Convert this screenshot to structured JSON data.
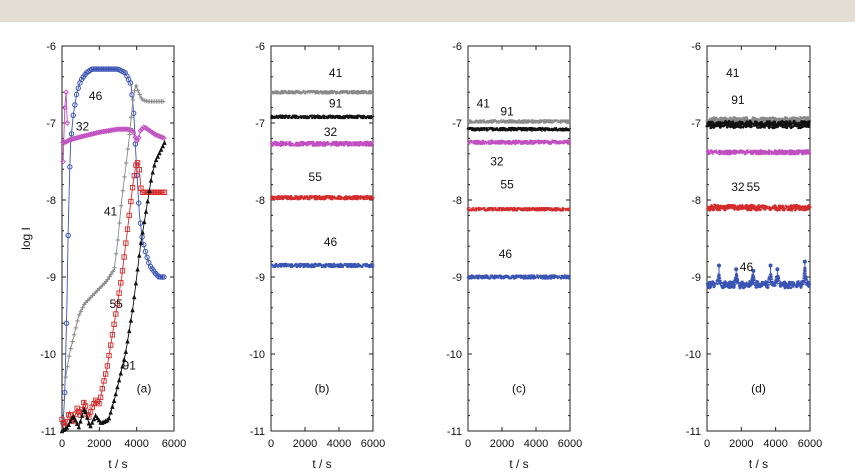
{
  "chart_data": [
    {
      "type": "scatter",
      "panel_label": "(a)",
      "xlabel": "t / s",
      "ylabel": "log I",
      "xlim": [
        0,
        6000
      ],
      "ylim": [
        -11,
        -6
      ],
      "xticks": [
        "0",
        "2000",
        "4000",
        "6000"
      ],
      "yticks": [
        "-6",
        "-7",
        "-8",
        "-9",
        "-10",
        "-11"
      ],
      "series": [
        {
          "name": "46",
          "color": "#3a54b4",
          "marker": "circle",
          "points": [
            [
              60,
              -10.9
            ],
            [
              150,
              -10.5
            ],
            [
              250,
              -9.5
            ],
            [
              350,
              -8.2
            ],
            [
              450,
              -7.3
            ],
            [
              600,
              -6.9
            ],
            [
              800,
              -6.6
            ],
            [
              1000,
              -6.45
            ],
            [
              1300,
              -6.35
            ],
            [
              1600,
              -6.3
            ],
            [
              2000,
              -6.3
            ],
            [
              2500,
              -6.3
            ],
            [
              3000,
              -6.3
            ],
            [
              3400,
              -6.35
            ],
            [
              3700,
              -6.5
            ],
            [
              3850,
              -6.9
            ],
            [
              4000,
              -7.6
            ],
            [
              4150,
              -8.2
            ],
            [
              4300,
              -8.5
            ],
            [
              4500,
              -8.7
            ],
            [
              4700,
              -8.85
            ],
            [
              5000,
              -8.95
            ],
            [
              5200,
              -9.0
            ],
            [
              5500,
              -9.0
            ]
          ],
          "label_at": [
            1800,
            -6.7
          ]
        },
        {
          "name": "32",
          "color": "#c04ec0",
          "marker": "diamond",
          "points": [
            [
              60,
              -7.25
            ],
            [
              200,
              -7.25
            ],
            [
              400,
              -7.22
            ],
            [
              700,
              -7.2
            ],
            [
              1000,
              -7.18
            ],
            [
              1500,
              -7.15
            ],
            [
              2000,
              -7.12
            ],
            [
              2500,
              -7.1
            ],
            [
              3000,
              -7.08
            ],
            [
              3500,
              -7.08
            ],
            [
              3800,
              -7.1
            ],
            [
              3950,
              -7.2
            ],
            [
              4050,
              -7.25
            ],
            [
              4200,
              -7.1
            ],
            [
              4400,
              -7.05
            ],
            [
              4700,
              -7.1
            ],
            [
              5000,
              -7.15
            ],
            [
              5500,
              -7.2
            ]
          ],
          "spike_points": [
            [
              60,
              -7.5
            ],
            [
              150,
              -6.8
            ],
            [
              220,
              -6.6
            ],
            [
              280,
              -7.0
            ]
          ],
          "label_at": [
            1100,
            -7.1
          ]
        },
        {
          "name": "41",
          "color": "#8a8a8a",
          "marker": "plus",
          "points": [
            [
              200,
              -10.3
            ],
            [
              400,
              -10.0
            ],
            [
              600,
              -9.8
            ],
            [
              900,
              -9.5
            ],
            [
              1200,
              -9.35
            ],
            [
              1600,
              -9.25
            ],
            [
              2000,
              -9.15
            ],
            [
              2400,
              -9.05
            ],
            [
              2800,
              -8.9
            ],
            [
              3000,
              -8.5
            ],
            [
              3200,
              -8.0
            ],
            [
              3400,
              -7.6
            ],
            [
              3600,
              -7.2
            ],
            [
              3800,
              -6.7
            ],
            [
              3950,
              -6.5
            ],
            [
              4100,
              -6.6
            ],
            [
              4300,
              -6.7
            ],
            [
              4600,
              -6.72
            ],
            [
              5000,
              -6.72
            ],
            [
              5500,
              -6.72
            ]
          ],
          "label_at": [
            2600,
            -8.2
          ]
        },
        {
          "name": "55",
          "color": "#d42b2b",
          "marker": "square",
          "points": [
            [
              0,
              -10.85
            ],
            [
              200,
              -10.95
            ],
            [
              400,
              -10.75
            ],
            [
              600,
              -10.9
            ],
            [
              800,
              -10.7
            ],
            [
              1000,
              -10.8
            ],
            [
              1200,
              -10.6
            ],
            [
              1400,
              -10.85
            ],
            [
              1600,
              -10.7
            ],
            [
              1800,
              -10.6
            ],
            [
              2000,
              -10.65
            ],
            [
              2200,
              -10.4
            ],
            [
              2400,
              -10.2
            ],
            [
              2600,
              -9.9
            ],
            [
              2800,
              -9.6
            ],
            [
              3000,
              -9.3
            ],
            [
              3200,
              -9.0
            ],
            [
              3400,
              -8.6
            ],
            [
              3600,
              -8.2
            ],
            [
              3800,
              -7.8
            ],
            [
              3950,
              -7.55
            ],
            [
              4100,
              -7.5
            ],
            [
              4250,
              -7.9
            ],
            [
              4500,
              -7.9
            ],
            [
              5000,
              -7.9
            ],
            [
              5500,
              -7.9
            ]
          ],
          "label_at": [
            2900,
            -9.4
          ]
        },
        {
          "name": "91",
          "color": "#111111",
          "marker": "triangle",
          "points": [
            [
              0,
              -11.0
            ],
            [
              300,
              -10.95
            ],
            [
              600,
              -10.8
            ],
            [
              900,
              -10.95
            ],
            [
              1200,
              -10.7
            ],
            [
              1500,
              -10.95
            ],
            [
              1800,
              -10.8
            ],
            [
              2100,
              -10.9
            ],
            [
              2500,
              -10.85
            ],
            [
              2800,
              -10.6
            ],
            [
              3000,
              -10.4
            ],
            [
              3200,
              -10.2
            ],
            [
              3400,
              -10.0
            ],
            [
              3600,
              -9.7
            ],
            [
              3800,
              -9.4
            ],
            [
              4000,
              -9.0
            ],
            [
              4200,
              -8.6
            ],
            [
              4400,
              -8.3
            ],
            [
              4600,
              -8.0
            ],
            [
              4800,
              -7.7
            ],
            [
              5000,
              -7.5
            ],
            [
              5300,
              -7.35
            ],
            [
              5500,
              -7.25
            ]
          ],
          "label_at": [
            3600,
            -10.2
          ]
        }
      ]
    },
    {
      "type": "scatter",
      "panel_label": "(b)",
      "xlabel": "t / s",
      "xlim": [
        0,
        6000
      ],
      "ylim": [
        -11,
        -6
      ],
      "xticks": [
        "0",
        "2000",
        "4000",
        "6000"
      ],
      "yticks": [
        "-6",
        "-7",
        "-8",
        "-9",
        "-10",
        "-11"
      ],
      "series": [
        {
          "name": "41",
          "color": "#8a8a8a",
          "level": -6.6,
          "noise": 0.01,
          "label_at": [
            3800,
            -6.4
          ]
        },
        {
          "name": "91",
          "color": "#111111",
          "level": -6.92,
          "noise": 0.01,
          "label_at": [
            3800,
            -6.8
          ]
        },
        {
          "name": "32",
          "color": "#c04ec0",
          "level": -7.27,
          "noise": 0.02,
          "label_at": [
            3500,
            -7.17
          ]
        },
        {
          "name": "55",
          "color": "#d42b2b",
          "level": -7.97,
          "noise": 0.015,
          "label_at": [
            2600,
            -7.75
          ]
        },
        {
          "name": "46",
          "color": "#3a54b4",
          "level": -8.85,
          "noise": 0.015,
          "label_at": [
            3500,
            -8.6
          ]
        }
      ]
    },
    {
      "type": "scatter",
      "panel_label": "(c)",
      "xlabel": "t / s",
      "xlim": [
        0,
        6000
      ],
      "ylim": [
        -11,
        -6
      ],
      "xticks": [
        "0",
        "2000",
        "4000",
        "6000"
      ],
      "yticks": [
        "-6",
        "-7",
        "-8",
        "-9",
        "-10",
        "-11"
      ],
      "series": [
        {
          "name": "41",
          "color": "#8a8a8a",
          "level": -6.98,
          "noise": 0.01,
          "label_at": [
            900,
            -6.8
          ]
        },
        {
          "name": "91",
          "color": "#111111",
          "level": -7.08,
          "noise": 0.01,
          "label_at": [
            2300,
            -6.9
          ]
        },
        {
          "name": "32",
          "color": "#c04ec0",
          "level": -7.25,
          "noise": 0.015,
          "label_at": [
            1700,
            -7.55
          ]
        },
        {
          "name": "55",
          "color": "#d42b2b",
          "level": -8.12,
          "noise": 0.01,
          "label_at": [
            2300,
            -7.85
          ]
        },
        {
          "name": "46",
          "color": "#3a54b4",
          "level": -9.0,
          "noise": 0.015,
          "label_at": [
            2200,
            -8.75
          ]
        }
      ]
    },
    {
      "type": "scatter",
      "panel_label": "(d)",
      "xlabel": "t / s",
      "xlim": [
        0,
        6000
      ],
      "ylim": [
        -11,
        -6
      ],
      "xticks": [
        "0",
        "2000",
        "4000",
        "6000"
      ],
      "yticks": [
        "-6",
        "-7",
        "-8",
        "-9",
        "-10",
        "-11"
      ],
      "series": [
        {
          "name": "41",
          "color": "#8a8a8a",
          "level": -6.96,
          "noise": 0.03,
          "label_at": [
            1500,
            -6.4
          ]
        },
        {
          "name": "91",
          "color": "#111111",
          "level": -7.02,
          "noise": 0.04,
          "label_at": [
            1800,
            -6.75
          ]
        },
        {
          "name": "32",
          "color": "#c04ec0",
          "level": -7.38,
          "noise": 0.02,
          "label_at": [
            1800,
            -7.88
          ]
        },
        {
          "name": "55",
          "color": "#d42b2b",
          "level": -8.1,
          "noise": 0.03,
          "label_at": [
            2700,
            -7.88
          ]
        },
        {
          "name": "46",
          "color": "#3a54b4",
          "level": -9.1,
          "noise": 0.04,
          "spikes": [
            [
              700,
              -8.85
            ],
            [
              1700,
              -8.9
            ],
            [
              2700,
              -8.92
            ],
            [
              3700,
              -8.85
            ],
            [
              4100,
              -8.9
            ],
            [
              5700,
              -8.8
            ]
          ],
          "label_at": [
            2300,
            -8.92
          ]
        }
      ]
    }
  ]
}
